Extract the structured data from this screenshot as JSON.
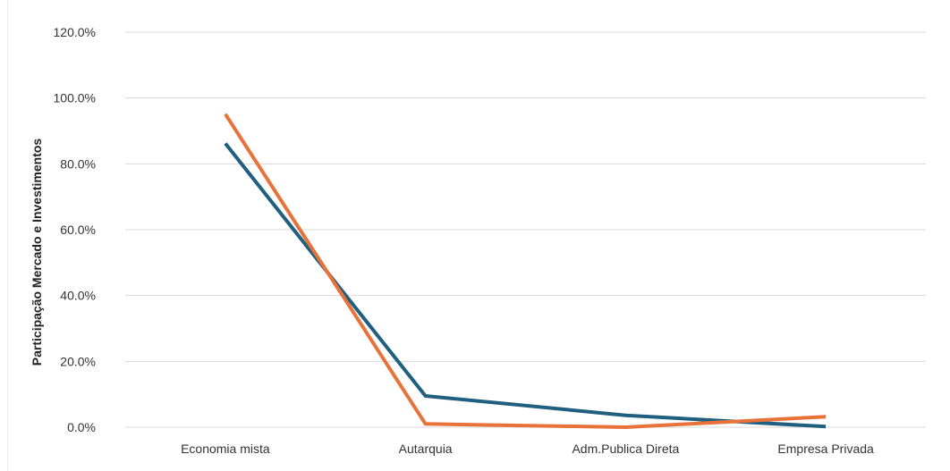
{
  "chart_data": {
    "type": "line",
    "title": "",
    "xlabel": "",
    "ylabel": "Participação Mercado e Investimentos",
    "categories": [
      "Economia mista",
      "Autarquia",
      "Adm.Publica Direta",
      "Empresa Privada"
    ],
    "series": [
      {
        "values": [
          0.862,
          0.095,
          0.036,
          0.002
        ],
        "color": "#1f5f7f"
      },
      {
        "values": [
          0.951,
          0.01,
          0.0,
          0.032
        ],
        "color": "#e8733a"
      }
    ],
    "ylim": [
      0,
      1.2
    ],
    "yticks": [
      0,
      0.2,
      0.4,
      0.6,
      0.8,
      1.0,
      1.2
    ],
    "ytick_labels": [
      "0.0%",
      "20.0%",
      "40.0%",
      "60.0%",
      "80.0%",
      "100.0%",
      "120.0%"
    ],
    "grid": true,
    "legend": "none"
  }
}
